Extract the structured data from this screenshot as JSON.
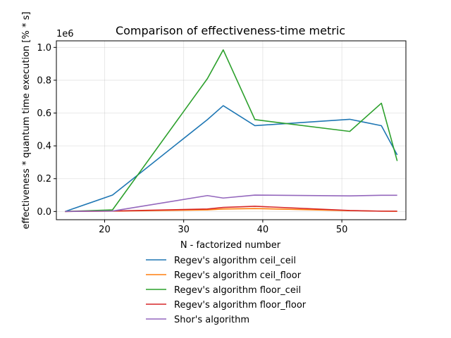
{
  "chart_data": {
    "type": "line",
    "title": "Comparison of effectiveness-time metric",
    "xlabel": "N - factorized number",
    "ylabel": "effectiveness * quantum time execution [% * s]",
    "offset_text": "1e6",
    "xlim": [
      13.9,
      58.1
    ],
    "ylim": [
      -0.05,
      1.04
    ],
    "x_ticks": [
      20,
      30,
      40,
      50
    ],
    "x_tick_labels": [
      "20",
      "30",
      "40",
      "50"
    ],
    "y_ticks": [
      0.0,
      0.2,
      0.4,
      0.6,
      0.8,
      1.0
    ],
    "y_tick_labels": [
      "0.0",
      "0.2",
      "0.4",
      "0.6",
      "0.8",
      "1.0"
    ],
    "grid": true,
    "legend_position": "below",
    "series": [
      {
        "name": "Regev's algorithm ceil_ceil",
        "color": "#1f77b4",
        "x": [
          15,
          21,
          33,
          35,
          39,
          51,
          55,
          57
        ],
        "y": [
          0.0,
          0.1,
          0.56,
          0.645,
          0.523,
          0.562,
          0.523,
          0.345
        ]
      },
      {
        "name": "Regev's algorithm ceil_floor",
        "color": "#ff7f0e",
        "x": [
          15,
          21,
          33,
          35,
          39,
          51,
          55,
          57
        ],
        "y": [
          0.0,
          0.002,
          0.01,
          0.015,
          0.018,
          0.005,
          0.002,
          0.001
        ]
      },
      {
        "name": "Regev's algorithm floor_ceil",
        "color": "#2ca02c",
        "x": [
          15,
          21,
          33,
          35,
          39,
          51,
          55,
          57
        ],
        "y": [
          0.0,
          0.01,
          0.81,
          0.985,
          0.56,
          0.488,
          0.66,
          0.308
        ]
      },
      {
        "name": "Regev's algorithm floor_floor",
        "color": "#d62728",
        "x": [
          15,
          21,
          33,
          35,
          39,
          51,
          55,
          57
        ],
        "y": [
          0.0,
          0.003,
          0.015,
          0.025,
          0.032,
          0.006,
          0.002,
          0.002
        ]
      },
      {
        "name": "Shor's algorithm",
        "color": "#9467bd",
        "x": [
          15,
          21,
          33,
          35,
          39,
          51,
          55,
          57
        ],
        "y": [
          0.0,
          0.003,
          0.097,
          0.082,
          0.1,
          0.095,
          0.099,
          0.099
        ]
      }
    ]
  }
}
